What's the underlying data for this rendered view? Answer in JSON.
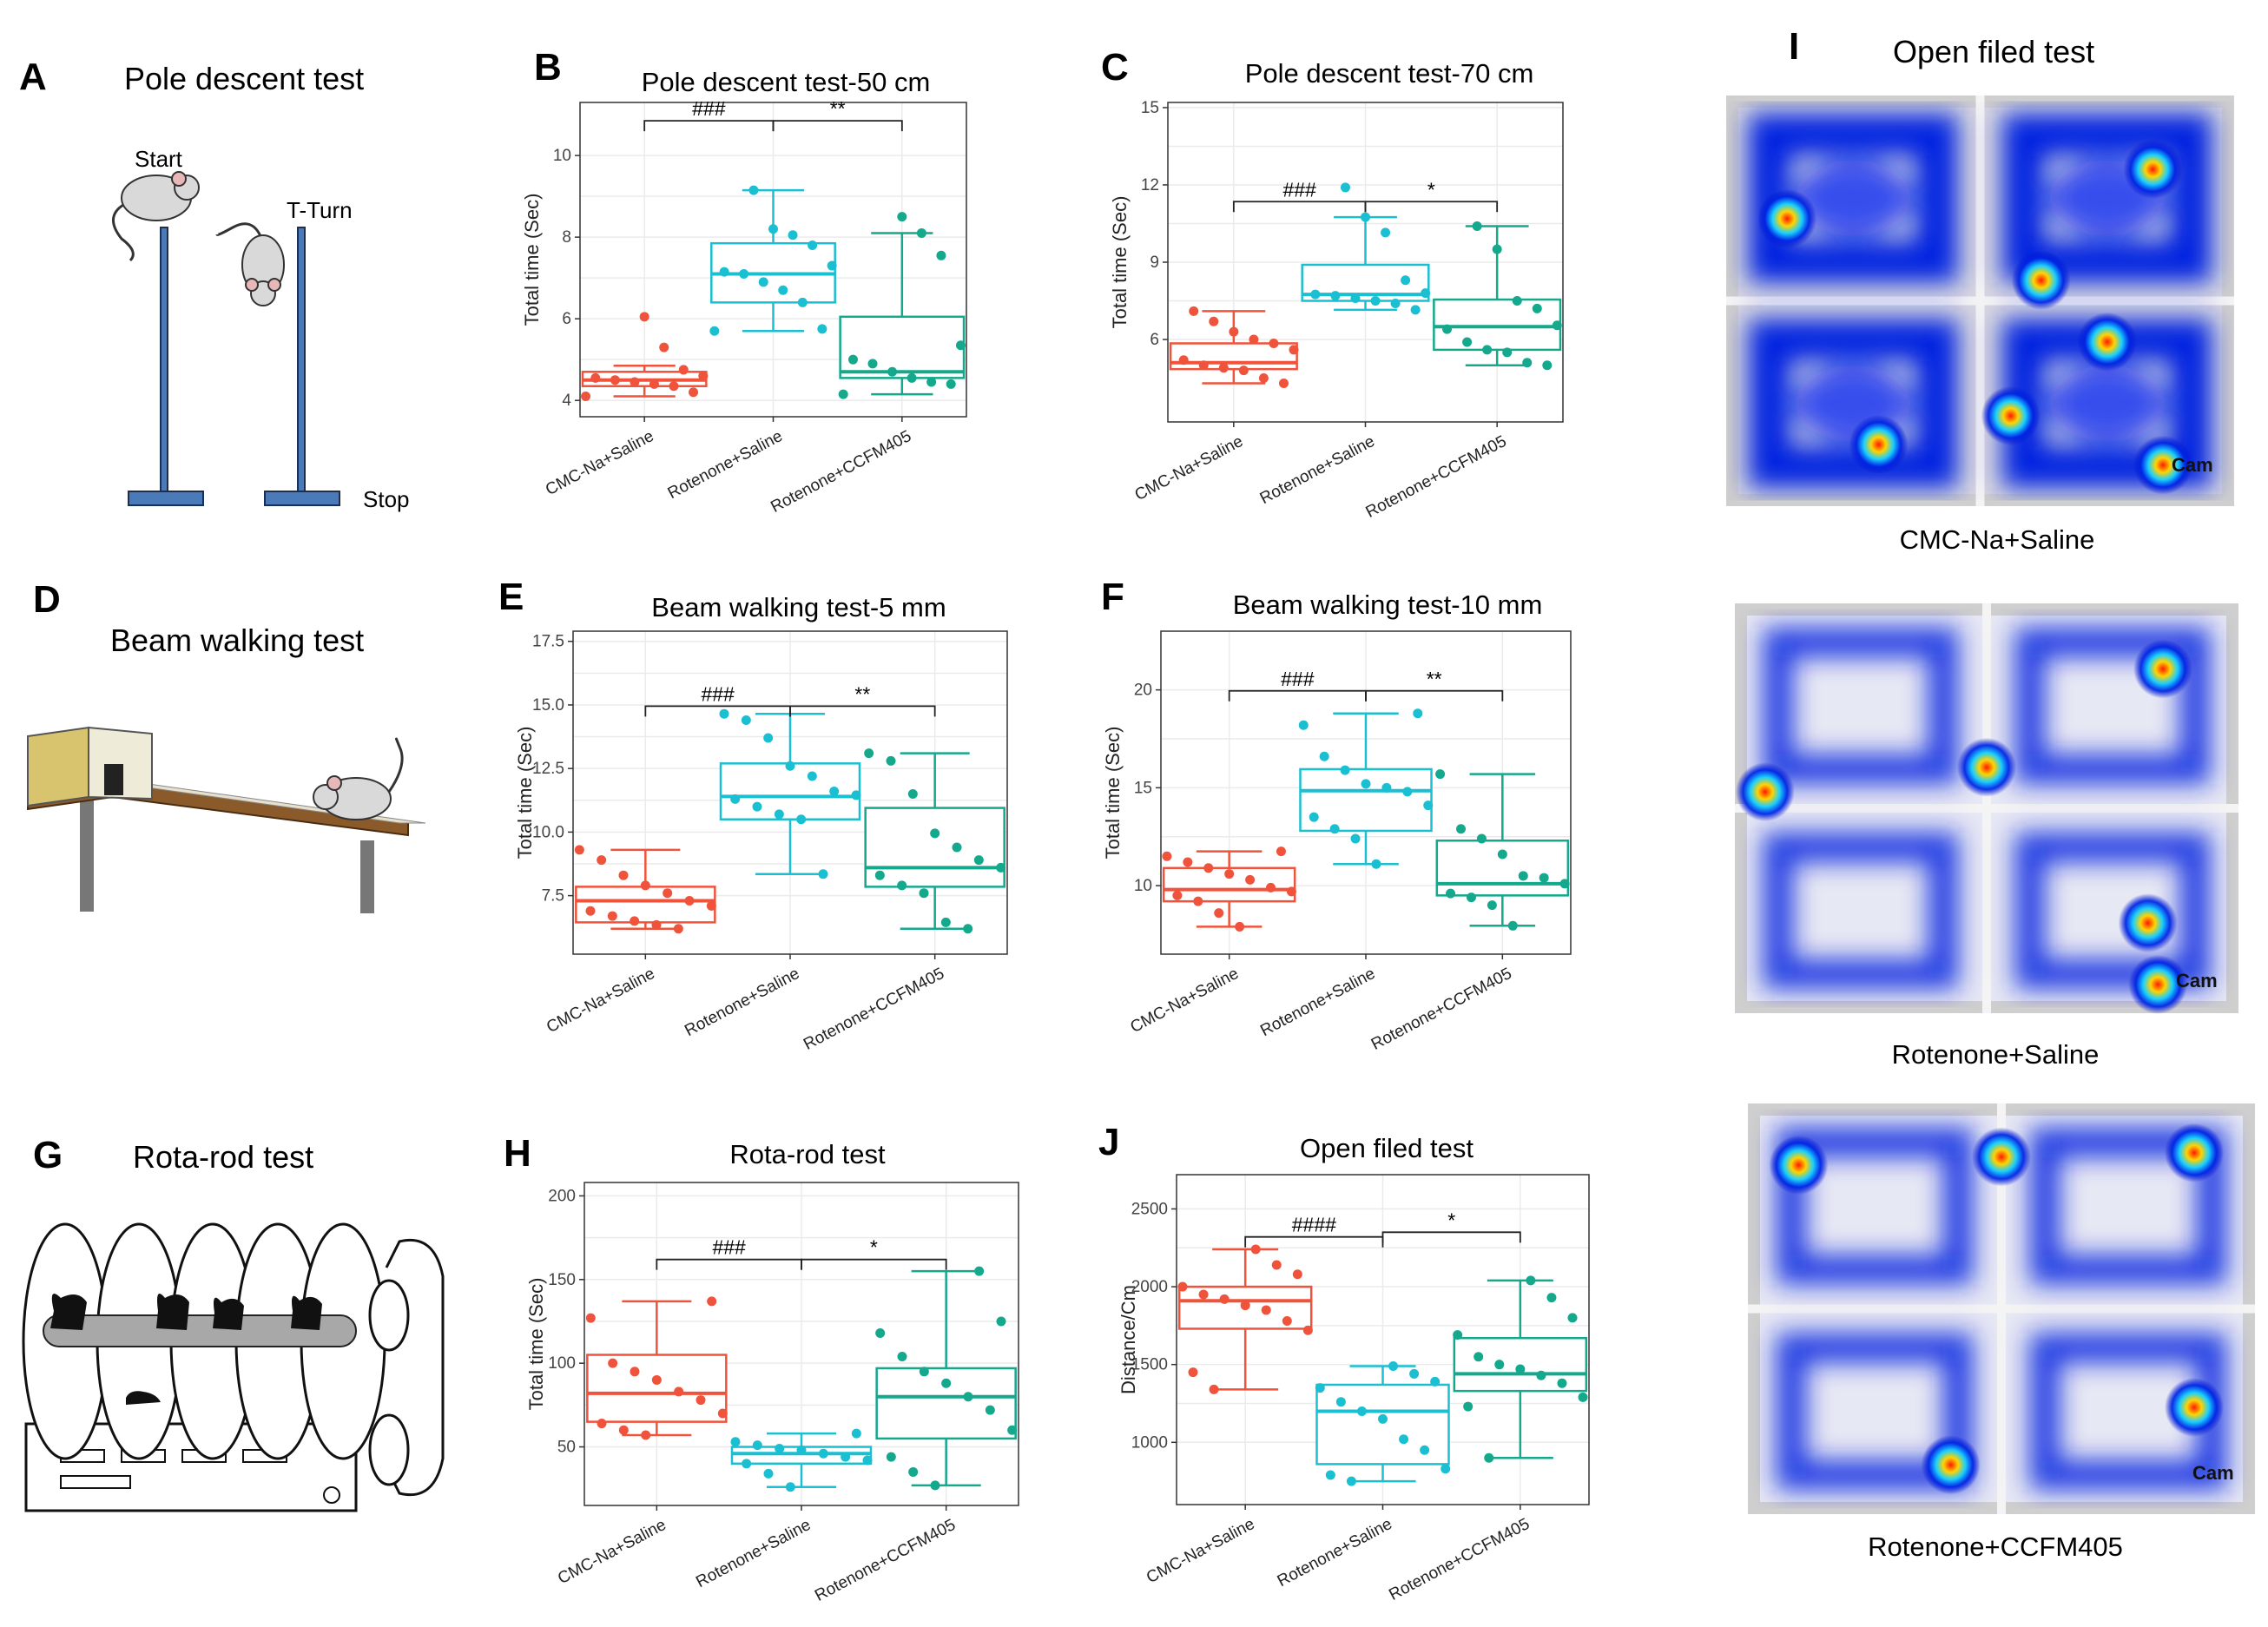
{
  "panels": {
    "A": {
      "letter": "A",
      "title": "Pole descent test",
      "start": "Start",
      "tturn": "T-Turn",
      "stop": "Stop"
    },
    "D": {
      "letter": "D",
      "title": "Beam walking test"
    },
    "G": {
      "letter": "G",
      "title": "Rota-rod test"
    },
    "I": {
      "letter": "I",
      "title": "Open filed test",
      "captions": [
        "CMC-Na+Saline",
        "Rotenone+Saline",
        "Rotenone+CCFM405"
      ],
      "cam": "Cam"
    }
  },
  "colors": {
    "cmc": "#F0533B",
    "rot_saline": "#1BBFD2",
    "rot_ccfm": "#14A88C"
  },
  "chart_data": [
    {
      "letter": "B",
      "type": "box",
      "title": "Pole descent test-50 cm",
      "ylabel": "Total time (Sec)",
      "categories": [
        "CMC-Na+Saline",
        "Rotenone+Saline",
        "Rotenone+CCFM405"
      ],
      "ylim": [
        3.6,
        11.3
      ],
      "yticks": [
        4,
        6,
        8,
        10
      ],
      "boxes": [
        {
          "min": 4.1,
          "q1": 4.35,
          "median": 4.5,
          "q3": 4.7,
          "max": 4.85
        },
        {
          "min": 5.7,
          "q1": 6.4,
          "median": 7.1,
          "q3": 7.85,
          "max": 9.15
        },
        {
          "min": 4.15,
          "q1": 4.55,
          "median": 4.7,
          "q3": 6.05,
          "max": 8.1
        }
      ],
      "points": [
        [
          4.1,
          4.2,
          4.35,
          4.4,
          4.45,
          4.5,
          4.55,
          4.6,
          4.75,
          5.3,
          6.05
        ],
        [
          5.7,
          5.75,
          6.4,
          6.7,
          6.9,
          7.1,
          7.15,
          7.3,
          7.8,
          8.05,
          8.2,
          9.15
        ],
        [
          4.15,
          4.4,
          4.45,
          4.55,
          4.7,
          4.9,
          5.0,
          5.35,
          7.55,
          8.1,
          8.5
        ]
      ],
      "brackets": [
        {
          "from": 0,
          "to": 1,
          "label": "###",
          "y": 10.85
        },
        {
          "from": 1,
          "to": 2,
          "label": "**",
          "y": 10.85
        }
      ]
    },
    {
      "letter": "C",
      "type": "box",
      "title": "Pole descent test-70 cm",
      "ylabel": "Total time (Sec)",
      "categories": [
        "CMC-Na+Saline",
        "Rotenone+Saline",
        "Rotenone+CCFM405"
      ],
      "ylim": [
        2.8,
        15.2
      ],
      "yticks": [
        6,
        9,
        12,
        15
      ],
      "boxes": [
        {
          "min": 4.3,
          "q1": 4.85,
          "median": 5.1,
          "q3": 5.85,
          "max": 7.1
        },
        {
          "min": 7.15,
          "q1": 7.5,
          "median": 7.75,
          "q3": 8.9,
          "max": 10.75
        },
        {
          "min": 5.0,
          "q1": 5.6,
          "median": 6.5,
          "q3": 7.55,
          "max": 10.4
        }
      ],
      "points": [
        [
          4.3,
          4.5,
          4.8,
          4.9,
          5.0,
          5.2,
          5.6,
          5.85,
          6.0,
          6.3,
          6.7,
          7.1
        ],
        [
          7.15,
          7.4,
          7.5,
          7.6,
          7.7,
          7.75,
          7.8,
          8.3,
          10.15,
          10.75,
          11.9
        ],
        [
          5.0,
          5.1,
          5.5,
          5.6,
          5.9,
          6.4,
          6.55,
          7.2,
          7.5,
          9.5,
          10.4
        ]
      ],
      "brackets": [
        {
          "from": 0,
          "to": 1,
          "label": "###",
          "y": 11.35
        },
        {
          "from": 1,
          "to": 2,
          "label": "*",
          "y": 11.35
        }
      ]
    },
    {
      "letter": "E",
      "type": "box",
      "title": "Beam walking test-5 mm",
      "ylabel": "Total time (Sec)",
      "categories": [
        "CMC-Na+Saline",
        "Rotenone+Saline",
        "Rotenone+CCFM405"
      ],
      "ylim": [
        5.2,
        17.9
      ],
      "yticks": [
        7.5,
        10.0,
        12.5,
        15.0,
        17.5
      ],
      "boxes": [
        {
          "min": 6.2,
          "q1": 6.45,
          "median": 7.3,
          "q3": 7.85,
          "max": 9.3
        },
        {
          "min": 8.35,
          "q1": 10.5,
          "median": 11.4,
          "q3": 12.7,
          "max": 14.65
        },
        {
          "min": 6.2,
          "q1": 7.85,
          "median": 8.6,
          "q3": 10.95,
          "max": 13.1
        }
      ],
      "points": [
        [
          6.2,
          6.35,
          6.5,
          6.7,
          6.9,
          7.1,
          7.3,
          7.6,
          7.9,
          8.3,
          8.9,
          9.3
        ],
        [
          8.35,
          10.5,
          10.7,
          11.0,
          11.3,
          11.45,
          11.6,
          12.2,
          12.6,
          13.7,
          14.4,
          14.65
        ],
        [
          6.2,
          6.45,
          7.6,
          7.9,
          8.3,
          8.6,
          8.9,
          9.4,
          9.95,
          11.5,
          12.8,
          13.1
        ]
      ],
      "brackets": [
        {
          "from": 0,
          "to": 1,
          "label": "###",
          "y": 14.95
        },
        {
          "from": 1,
          "to": 2,
          "label": "**",
          "y": 14.95
        }
      ]
    },
    {
      "letter": "F",
      "type": "box",
      "title": "Beam walking test-10 mm",
      "ylabel": "Total time (Sec)",
      "categories": [
        "CMC-Na+Saline",
        "Rotenone+Saline",
        "Rotenone+CCFM405"
      ],
      "ylim": [
        6.5,
        23
      ],
      "yticks": [
        10,
        15,
        20
      ],
      "boxes": [
        {
          "min": 7.9,
          "q1": 9.2,
          "median": 9.8,
          "q3": 10.9,
          "max": 11.75
        },
        {
          "min": 11.1,
          "q1": 12.8,
          "median": 14.85,
          "q3": 15.95,
          "max": 18.8
        },
        {
          "min": 7.95,
          "q1": 9.5,
          "median": 10.1,
          "q3": 12.3,
          "max": 15.7
        }
      ],
      "points": [
        [
          7.9,
          8.6,
          9.2,
          9.5,
          9.7,
          9.9,
          10.3,
          10.6,
          10.9,
          11.2,
          11.5,
          11.75
        ],
        [
          11.1,
          12.4,
          12.9,
          13.5,
          14.1,
          14.8,
          15.0,
          15.2,
          15.9,
          16.6,
          18.2,
          18.8
        ],
        [
          7.95,
          9.0,
          9.4,
          9.6,
          10.1,
          10.4,
          10.5,
          11.6,
          12.4,
          12.9,
          15.7
        ]
      ],
      "brackets": [
        {
          "from": 0,
          "to": 1,
          "label": "###",
          "y": 19.95
        },
        {
          "from": 1,
          "to": 2,
          "label": "**",
          "y": 19.95
        }
      ]
    },
    {
      "letter": "H",
      "type": "box",
      "title": "Rota-rod test",
      "ylabel": "Total time (Sec)",
      "categories": [
        "CMC-Na+Saline",
        "Rotenone+Saline",
        "Rotenone+CCFM405"
      ],
      "ylim": [
        15,
        208
      ],
      "yticks": [
        50,
        100,
        150,
        200
      ],
      "boxes": [
        {
          "min": 57,
          "q1": 65,
          "median": 82,
          "q3": 105,
          "max": 137
        },
        {
          "min": 26,
          "q1": 40,
          "median": 46,
          "q3": 50,
          "max": 58
        },
        {
          "min": 27,
          "q1": 55,
          "median": 80,
          "q3": 97,
          "max": 155
        }
      ],
      "points": [
        [
          57,
          60,
          64,
          70,
          78,
          83,
          90,
          95,
          100,
          127,
          137
        ],
        [
          26,
          34,
          40,
          42,
          44,
          46,
          48,
          49,
          51,
          53,
          58
        ],
        [
          27,
          35,
          44,
          60,
          72,
          80,
          88,
          95,
          104,
          118,
          125,
          155
        ]
      ],
      "brackets": [
        {
          "from": 0,
          "to": 1,
          "label": "###",
          "y": 162
        },
        {
          "from": 1,
          "to": 2,
          "label": "*",
          "y": 162
        }
      ]
    },
    {
      "letter": "J",
      "type": "box",
      "title": "Open filed test",
      "ylabel": "Distance/Cm",
      "categories": [
        "CMC-Na+Saline",
        "Rotenone+Saline",
        "Rotenone+CCFM405"
      ],
      "ylim": [
        600,
        2720
      ],
      "yticks": [
        1000,
        1500,
        2000,
        2500
      ],
      "boxes": [
        {
          "min": 1340,
          "q1": 1730,
          "median": 1910,
          "q3": 2000,
          "max": 2240
        },
        {
          "min": 750,
          "q1": 860,
          "median": 1200,
          "q3": 1370,
          "max": 1490
        },
        {
          "min": 900,
          "q1": 1330,
          "median": 1440,
          "q3": 1670,
          "max": 2040
        }
      ],
      "points": [
        [
          1340,
          1450,
          1720,
          1780,
          1850,
          1880,
          1920,
          1950,
          2000,
          2080,
          2140,
          2240
        ],
        [
          750,
          790,
          830,
          950,
          1020,
          1150,
          1200,
          1260,
          1350,
          1390,
          1440,
          1490
        ],
        [
          900,
          1230,
          1290,
          1380,
          1430,
          1470,
          1500,
          1550,
          1690,
          1800,
          1930,
          2040
        ]
      ],
      "brackets": [
        {
          "from": 0,
          "to": 1,
          "label": "####",
          "y": 2320
        },
        {
          "from": 1,
          "to": 2,
          "label": "*",
          "y": 2350
        }
      ]
    }
  ]
}
